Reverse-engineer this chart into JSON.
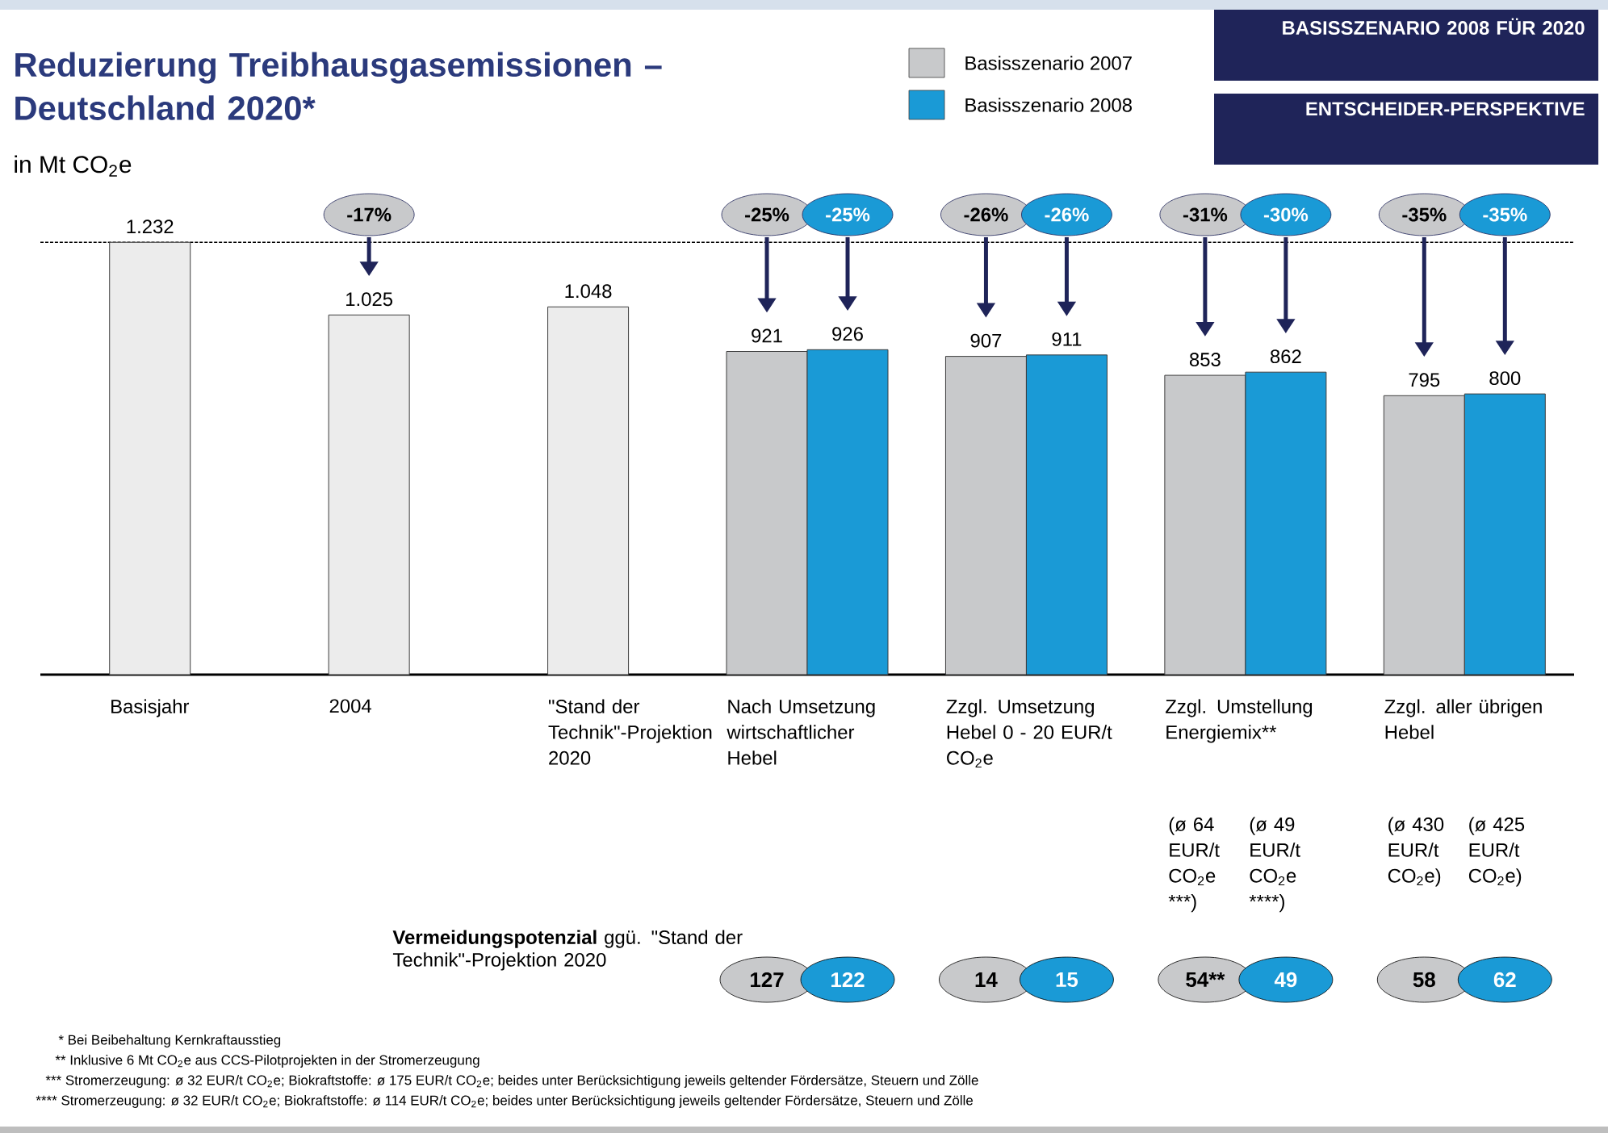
{
  "chart_data": {
    "type": "bar",
    "title": "Reduzierung Treibhausgasemissionen – Deutschland 2020*",
    "ylabel": "in Mt CO$_{2}$e",
    "categories": [
      "Basisjahr",
      "2004",
      "\"Stand der Technik\"-Projektion 2020",
      "Nach Umsetzung wirtschaftlicher Hebel",
      "Zzgl. Umsetzung Hebel 0 - 20 EUR/t CO$_{2}$e",
      "Zzgl. Umstellung Energiemix**",
      "Zzgl. aller übrigen Hebel"
    ],
    "series": [
      {
        "name": "Basisszenario 2007",
        "color": "#c8c9cb",
        "colors": [
          "#ececec",
          "#ececec",
          "#ececec",
          "#c8c9cb",
          "#c8c9cb",
          "#c8c9cb",
          "#c8c9cb"
        ],
        "values": [
          1232,
          1025,
          1048,
          921,
          907,
          853,
          795
        ],
        "value_labels": [
          "1.232",
          "1.025",
          "1.048",
          "921",
          "907",
          "853",
          "795"
        ]
      },
      {
        "name": "Basisszenario 2008",
        "color": "#1a9ad6",
        "values": [
          null,
          null,
          null,
          926,
          911,
          862,
          800
        ],
        "value_labels": [
          null,
          null,
          null,
          "926",
          "911",
          "862",
          "800"
        ]
      }
    ],
    "ref_lines": [
      {
        "axis": "y",
        "value": 1232,
        "line_style": "dashed"
      }
    ],
    "legend": "top",
    "annotations": [
      "BASISSZENARIO 2008 FÜR 2020",
      "ENTSCHEIDER-PERSPEKTIVE",
      "-17%",
      "-25%",
      "-25%",
      "-26%",
      "-26%",
      "-31%",
      "-30%",
      "-35%",
      "-35%",
      "(ø 64 EUR/t CO$_{2}$e ***)",
      "(ø 49 EUR/t CO$_{2}$e ****)",
      "(ø 430 EUR/t CO$_{2}$e)",
      "(ø 425 EUR/t CO$_{2}$e)",
      "**Vermeidungspotenzial** ggü. \"Stand der Technik\"-Projektion 2020",
      "127",
      "122",
      "14",
      "15",
      "54**",
      "49",
      "58",
      "62",
      "* Bei Beibehaltung Kernkraftausstieg",
      "** Inklusive 6 Mt CO$_{2}$e aus CCS-Pilotprojekten in der Stromerzeugung",
      "*** Stromerzeugung: ø 32 EUR/t CO$_{2}$e; Biokraftstoffe: ø 175 EUR/t CO$_{2}$e; beides unter Berücksichtigung jeweils geltender Fördersätze, Steuern und Zölle",
      "**** Stromerzeugung: ø 32 EUR/t CO$_{2}$e; Biokraftstoffe: ø 114 EUR/t CO$_{2}$e; beides unter Berücksichtigung jeweils geltender Fördersätze, Steuern und Zölle"
    ]
  }
}
